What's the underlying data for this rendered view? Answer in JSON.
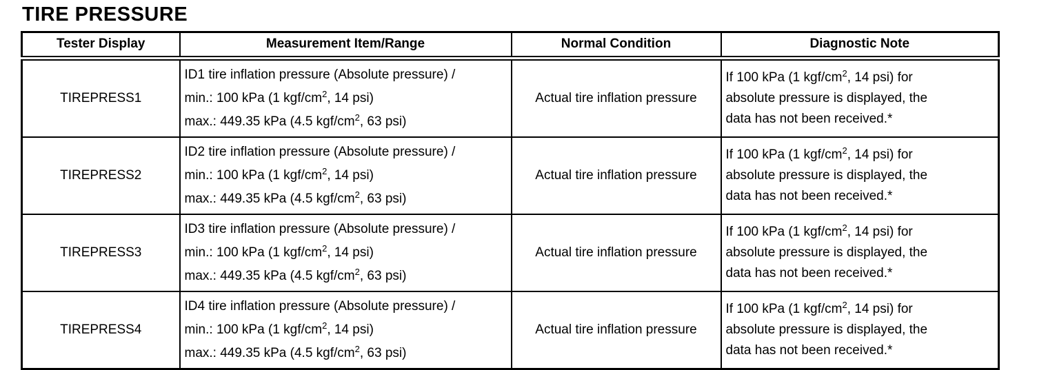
{
  "page": {
    "title": "TIRE PRESSURE"
  },
  "colors": {
    "text": "#000000",
    "background": "#ffffff",
    "border": "#000000"
  },
  "table": {
    "headers": [
      "Tester Display",
      "Measurement Item/Range",
      "Normal Condition",
      "Diagnostic Note"
    ],
    "rows": [
      {
        "tester": "TIREPRESS1",
        "m_line1": "ID1 tire inflation pressure (Absolute pressure) /",
        "m_min_pre": "min.: 100 kPa (1 kgf/cm",
        "m_min_sup": "2",
        "m_min_post": ", 14 psi)",
        "m_max_pre": "max.: 449.35 kPa (4.5 kgf/cm",
        "m_max_sup": "2",
        "m_max_post": ", 63 psi)",
        "normal": "Actual tire inflation pressure",
        "d_pre": "If 100 kPa (1 kgf/cm",
        "d_sup": "2",
        "d_post": ", 14 psi) for",
        "d_line2": "absolute pressure is displayed, the",
        "d_line3": "data has not been received.*"
      },
      {
        "tester": "TIREPRESS2",
        "m_line1": "ID2 tire inflation pressure (Absolute pressure) /",
        "m_min_pre": "min.: 100 kPa (1 kgf/cm",
        "m_min_sup": "2",
        "m_min_post": ", 14 psi)",
        "m_max_pre": "max.: 449.35 kPa (4.5 kgf/cm",
        "m_max_sup": "2",
        "m_max_post": ", 63 psi)",
        "normal": "Actual tire inflation pressure",
        "d_pre": "If 100 kPa (1 kgf/cm",
        "d_sup": "2",
        "d_post": ", 14 psi) for",
        "d_line2": "absolute pressure is displayed, the",
        "d_line3": "data has not been received.*"
      },
      {
        "tester": "TIREPRESS3",
        "m_line1": "ID3 tire inflation pressure (Absolute pressure) /",
        "m_min_pre": "min.: 100 kPa (1 kgf/cm",
        "m_min_sup": "2",
        "m_min_post": ", 14 psi)",
        "m_max_pre": "max.: 449.35 kPa (4.5 kgf/cm",
        "m_max_sup": "2",
        "m_max_post": ", 63 psi)",
        "normal": "Actual tire inflation pressure",
        "d_pre": "If 100 kPa (1 kgf/cm",
        "d_sup": "2",
        "d_post": ", 14 psi) for",
        "d_line2": "absolute pressure is displayed, the",
        "d_line3": "data has not been received.*"
      },
      {
        "tester": "TIREPRESS4",
        "m_line1": "ID4 tire inflation pressure (Absolute pressure) /",
        "m_min_pre": "min.: 100 kPa (1 kgf/cm",
        "m_min_sup": "2",
        "m_min_post": ", 14 psi)",
        "m_max_pre": "max.: 449.35 kPa (4.5 kgf/cm",
        "m_max_sup": "2",
        "m_max_post": ", 63 psi)",
        "normal": "Actual tire inflation pressure",
        "d_pre": "If 100 kPa (1 kgf/cm",
        "d_sup": "2",
        "d_post": ", 14 psi) for",
        "d_line2": "absolute pressure is displayed, the",
        "d_line3": "data has not been received.*"
      }
    ]
  }
}
